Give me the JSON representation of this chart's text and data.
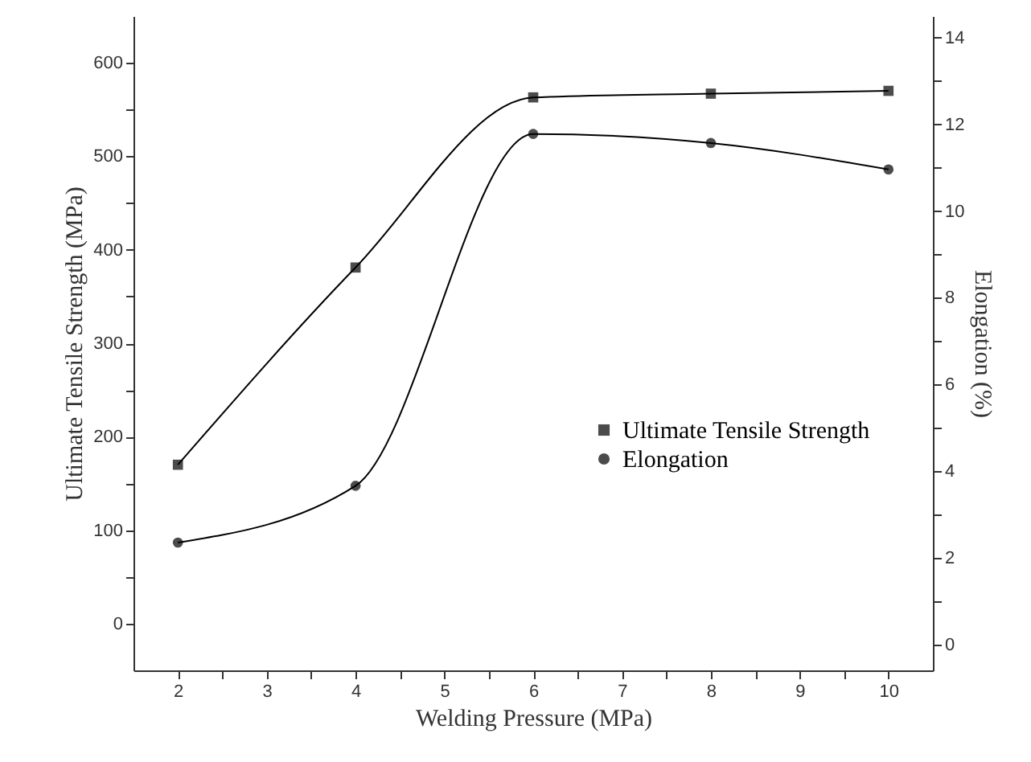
{
  "chart_data": {
    "type": "line",
    "xlabel": "Welding Pressure (MPa)",
    "ylabel": "Ultimate Tensile Strength (MPa)",
    "y2label": "Elongation (%)",
    "x": [
      2,
      4,
      6,
      8,
      10
    ],
    "series": [
      {
        "name": "Ultimate Tensile Strength",
        "color": "#000000",
        "marker": "square",
        "values": [
          170,
          381,
          563,
          567,
          570
        ]
      },
      {
        "name": "Elongation",
        "color": "#000000",
        "marker": "circle",
        "axis": "y2",
        "values": [
          2.35,
          3.66,
          11.78,
          11.57,
          10.96
        ]
      }
    ],
    "xlim": [
      1.5,
      10.5
    ],
    "xticks": [
      2,
      {
        "value": 2.5,
        "label": null
      },
      3,
      {
        "value": 3.5,
        "label": null
      },
      4,
      {
        "value": 4.5,
        "label": null
      },
      5,
      {
        "value": 5.5,
        "label": null
      },
      6,
      {
        "value": 6.5,
        "label": null
      },
      7,
      {
        "value": 7.5,
        "label": null
      },
      8,
      {
        "value": 8.5,
        "label": null
      },
      9,
      {
        "value": 9.5,
        "label": null
      },
      10
    ],
    "ylim": [
      -50,
      650
    ],
    "yticks": [
      0,
      {
        "value": 50,
        "label": null
      },
      100,
      {
        "value": 150,
        "label": null
      },
      200,
      {
        "value": 250,
        "label": null
      },
      300,
      {
        "value": 350,
        "label": null
      },
      400,
      {
        "value": 450,
        "label": null
      },
      500,
      {
        "value": 550,
        "label": null
      },
      600
    ],
    "y2lim": [
      -0.6,
      14.5
    ],
    "y2ticks": [
      0,
      {
        "value": 1,
        "label": null
      },
      2,
      {
        "value": 3,
        "label": null
      },
      4,
      {
        "value": 5,
        "label": null
      },
      6,
      {
        "value": 7,
        "label": null
      },
      8,
      {
        "value": 9,
        "label": null
      },
      10,
      {
        "value": 11,
        "label": null
      },
      12,
      {
        "value": 13,
        "label": null
      },
      14
    ],
    "grid": false,
    "legend": "right",
    "line_style": "solid"
  }
}
